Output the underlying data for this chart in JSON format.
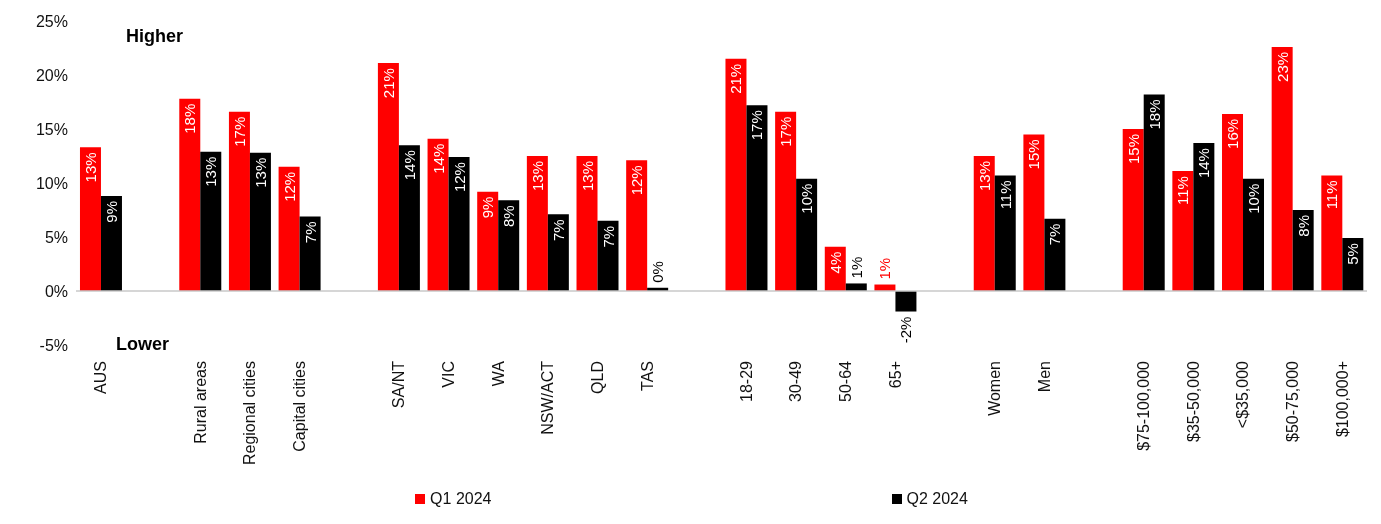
{
  "chart_data": {
    "type": "bar",
    "categories": [
      "AUS",
      null,
      "Rural areas",
      "Regional cities",
      "Capital cities",
      null,
      "SA/NT",
      "VIC",
      "WA",
      "NSW/ACT",
      "QLD",
      "TAS",
      null,
      "18-29",
      "30-49",
      "50-64",
      "65+",
      null,
      "Women",
      "Men",
      null,
      "$75-100,000",
      "$35-50,000",
      "<$35,000",
      "$50-75,000",
      "$100,000+"
    ],
    "series": [
      {
        "name": "Q1 2024",
        "color": "#ff0000",
        "values": [
          13.3,
          null,
          17.8,
          16.6,
          11.5,
          null,
          21.1,
          14.1,
          9.2,
          12.5,
          12.5,
          12.1,
          null,
          21.5,
          16.6,
          4.1,
          0.6,
          null,
          12.5,
          14.5,
          null,
          15.0,
          11.1,
          16.4,
          22.6,
          10.7
        ],
        "value_labels": [
          "13%",
          null,
          "18%",
          "17%",
          "12%",
          null,
          "21%",
          "14%",
          "9%",
          "13%",
          "13%",
          "12%",
          null,
          "21%",
          "17%",
          "4%",
          "1%",
          null,
          "13%",
          "15%",
          null,
          "15%",
          "11%",
          "16%",
          "23%",
          "11%"
        ]
      },
      {
        "name": "Q2 2024",
        "color": "#000000",
        "values": [
          8.8,
          null,
          12.9,
          12.8,
          6.9,
          null,
          13.5,
          12.4,
          8.4,
          7.1,
          6.5,
          0.3,
          null,
          17.2,
          10.4,
          0.7,
          -1.9,
          null,
          10.7,
          6.7,
          null,
          18.2,
          13.7,
          10.4,
          7.5,
          4.9
        ],
        "value_labels": [
          "9%",
          null,
          "13%",
          "13%",
          "7%",
          null,
          "14%",
          "12%",
          "8%",
          "7%",
          "7%",
          "0%",
          null,
          "17%",
          "10%",
          "1%",
          "-2%",
          null,
          "11%",
          "7%",
          null,
          "18%",
          "14%",
          "10%",
          "8%",
          "5%"
        ]
      }
    ],
    "ylim": [
      -5,
      25
    ],
    "yticks": [
      {
        "value": -5,
        "label": "-5%"
      },
      {
        "value": 0,
        "label": "0%"
      },
      {
        "value": 5,
        "label": "5%"
      },
      {
        "value": 10,
        "label": "10%"
      },
      {
        "value": 15,
        "label": "15%"
      },
      {
        "value": 20,
        "label": "20%"
      },
      {
        "value": 25,
        "label": "25%"
      }
    ],
    "annotations": [
      "Higher",
      "Lower"
    ],
    "ref_lines": [
      {
        "axis": "y",
        "value": 0,
        "color": "#c8c8c8"
      }
    ],
    "grid": false,
    "legend": "bottom"
  }
}
